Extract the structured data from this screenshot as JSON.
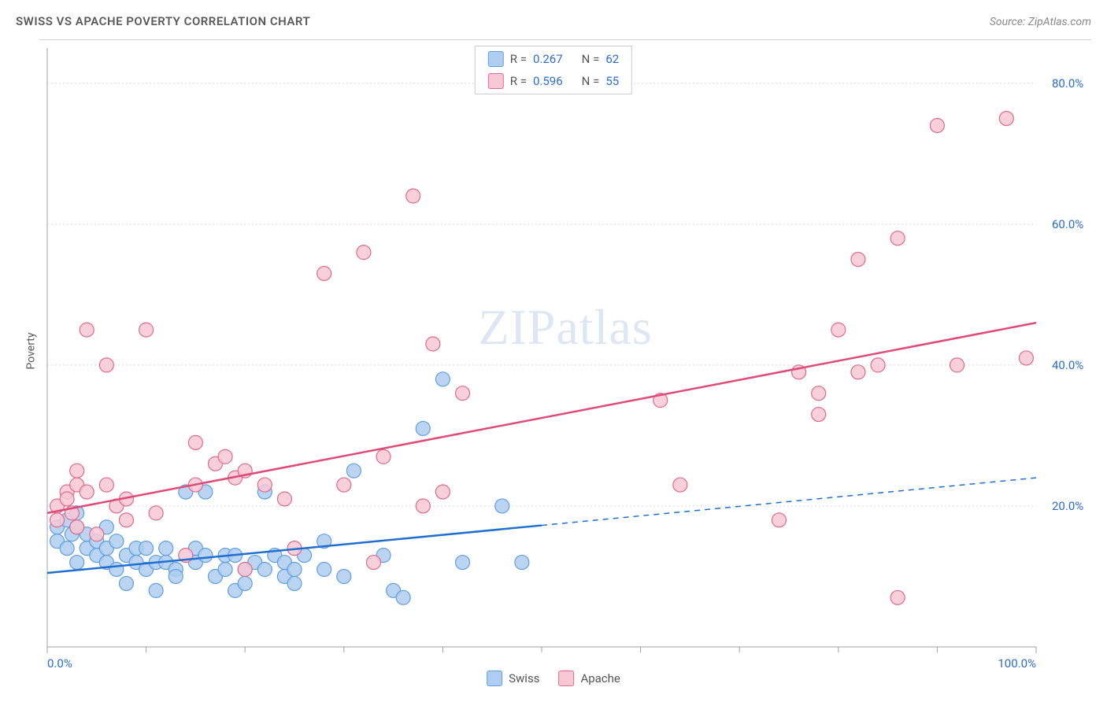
{
  "title": "SWISS VS APACHE POVERTY CORRELATION CHART",
  "source": "Source: ZipAtlas.com",
  "ylabel": "Poverty",
  "watermark_a": "ZIP",
  "watermark_b": "atlas",
  "chart": {
    "type": "scatter",
    "background_color": "#ffffff",
    "grid_color": "#d8d8d8",
    "axis_color": "#a0a0a0",
    "label_color": "#2b6cd4",
    "text_color": "#5a5a5a",
    "title_fontsize": 15,
    "label_fontsize": 15,
    "marker_radius": 9,
    "marker_stroke_width": 1.2,
    "xlim": [
      0,
      100
    ],
    "ylim": [
      0,
      85
    ],
    "xtick_labels": [
      "0.0%",
      "100.0%"
    ],
    "xtick_positions": [
      0,
      100
    ],
    "xtick_minor": [
      10,
      20,
      30,
      40,
      50,
      60,
      70,
      80,
      90
    ],
    "ytick_labels": [
      "20.0%",
      "40.0%",
      "60.0%",
      "80.0%"
    ],
    "ytick_positions": [
      20,
      40,
      60,
      80
    ],
    "series": [
      {
        "name": "Swiss",
        "r": "0.267",
        "n": "62",
        "fill": "#aecdf0",
        "stroke": "#5f9fe0",
        "line_color": "#1f6fd0",
        "line_width": 2.5,
        "dash_after_x": 50,
        "trend": {
          "x1": 0,
          "y1": 10.5,
          "x2": 100,
          "y2": 24
        },
        "points": [
          [
            1,
            17
          ],
          [
            1,
            15
          ],
          [
            2,
            18
          ],
          [
            2,
            14
          ],
          [
            2.5,
            16
          ],
          [
            3,
            17
          ],
          [
            3,
            19
          ],
          [
            3,
            12
          ],
          [
            4,
            14
          ],
          [
            4,
            16
          ],
          [
            5,
            13
          ],
          [
            5,
            15
          ],
          [
            6,
            12
          ],
          [
            6,
            14
          ],
          [
            6,
            17
          ],
          [
            7,
            11
          ],
          [
            7,
            15
          ],
          [
            8,
            13
          ],
          [
            8,
            9
          ],
          [
            9,
            14
          ],
          [
            9,
            12
          ],
          [
            10,
            14
          ],
          [
            10,
            11
          ],
          [
            11,
            12
          ],
          [
            11,
            8
          ],
          [
            12,
            12
          ],
          [
            12,
            14
          ],
          [
            13,
            11
          ],
          [
            13,
            10
          ],
          [
            14,
            22
          ],
          [
            15,
            12
          ],
          [
            15,
            14
          ],
          [
            16,
            13
          ],
          [
            16,
            22
          ],
          [
            17,
            10
          ],
          [
            18,
            11
          ],
          [
            18,
            13
          ],
          [
            19,
            13
          ],
          [
            19,
            8
          ],
          [
            20,
            11
          ],
          [
            20,
            9
          ],
          [
            21,
            12
          ],
          [
            22,
            11
          ],
          [
            22,
            22
          ],
          [
            23,
            13
          ],
          [
            24,
            10
          ],
          [
            24,
            12
          ],
          [
            25,
            9
          ],
          [
            25,
            11
          ],
          [
            26,
            13
          ],
          [
            28,
            11
          ],
          [
            28,
            15
          ],
          [
            30,
            10
          ],
          [
            31,
            25
          ],
          [
            34,
            13
          ],
          [
            35,
            8
          ],
          [
            36,
            7
          ],
          [
            38,
            31
          ],
          [
            40,
            38
          ],
          [
            42,
            12
          ],
          [
            46,
            20
          ],
          [
            48,
            12
          ]
        ]
      },
      {
        "name": "Apache",
        "r": "0.596",
        "n": "55",
        "fill": "#f6c8d5",
        "stroke": "#e06a8c",
        "line_color": "#e04a78",
        "line_width": 2.5,
        "dash_after_x": 100,
        "trend": {
          "x1": 0,
          "y1": 19,
          "x2": 100,
          "y2": 46
        },
        "points": [
          [
            1,
            20
          ],
          [
            1,
            18
          ],
          [
            2,
            22
          ],
          [
            2,
            21
          ],
          [
            2.5,
            19
          ],
          [
            3,
            17
          ],
          [
            3,
            23
          ],
          [
            3,
            25
          ],
          [
            4,
            22
          ],
          [
            4,
            45
          ],
          [
            5,
            16
          ],
          [
            6,
            40
          ],
          [
            6,
            23
          ],
          [
            7,
            20
          ],
          [
            8,
            18
          ],
          [
            8,
            21
          ],
          [
            10,
            45
          ],
          [
            11,
            19
          ],
          [
            14,
            13
          ],
          [
            15,
            23
          ],
          [
            15,
            29
          ],
          [
            17,
            26
          ],
          [
            18,
            27
          ],
          [
            19,
            24
          ],
          [
            20,
            11
          ],
          [
            20,
            25
          ],
          [
            22,
            23
          ],
          [
            24,
            21
          ],
          [
            25,
            14
          ],
          [
            28,
            53
          ],
          [
            30,
            23
          ],
          [
            32,
            56
          ],
          [
            33,
            12
          ],
          [
            34,
            27
          ],
          [
            37,
            64
          ],
          [
            38,
            20
          ],
          [
            39,
            43
          ],
          [
            40,
            22
          ],
          [
            42,
            36
          ],
          [
            62,
            35
          ],
          [
            64,
            23
          ],
          [
            74,
            18
          ],
          [
            76,
            39
          ],
          [
            78,
            36
          ],
          [
            78,
            33
          ],
          [
            80,
            45
          ],
          [
            82,
            55
          ],
          [
            82,
            39
          ],
          [
            84,
            40
          ],
          [
            86,
            7
          ],
          [
            86,
            58
          ],
          [
            90,
            74
          ],
          [
            92,
            40
          ],
          [
            97,
            75
          ],
          [
            99,
            41
          ]
        ]
      }
    ]
  },
  "legend_top": {
    "r_label": "R =",
    "n_label": "N ="
  },
  "legend_bottom": {
    "items": [
      "Swiss",
      "Apache"
    ]
  }
}
